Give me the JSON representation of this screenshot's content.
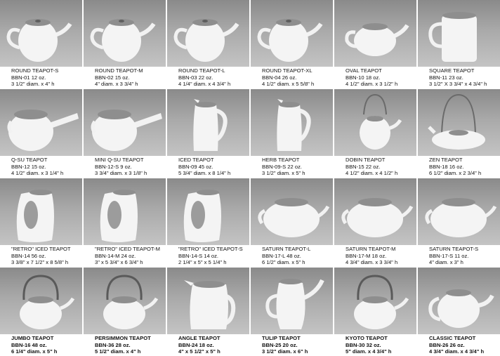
{
  "catalog": {
    "rows": [
      [
        {
          "name": "ROUND TEAPOT-S",
          "sku": "BBN-01  12 oz.",
          "dims": "3 1/2\" diam. x 4\" h",
          "icon": "round-teapot-icon"
        },
        {
          "name": "ROUND TEAPOT-M",
          "sku": "BBN-02  15 oz.",
          "dims": "4\" diam. x 3 3/4\" h",
          "icon": "round-teapot-icon"
        },
        {
          "name": "ROUND TEAPOT-L",
          "sku": "BBN-03  22 oz.",
          "dims": "4 1/4\" diam. x 4 3/4\" h",
          "icon": "round-teapot-icon"
        },
        {
          "name": "ROUND TEAPOT-XL",
          "sku": "BBN-04  26 oz.",
          "dims": "4 1/2\" diam. x 5 5/8\" h",
          "icon": "round-teapot-icon"
        },
        {
          "name": "OVAL TEAPOT",
          "sku": "BBN-10  18 oz.",
          "dims": "4 1/2\" diam. x 3 1/2\" h",
          "icon": "oval-teapot-icon"
        },
        {
          "name": "SQUARE TEAPOT",
          "sku": "BBN-11  23 oz.",
          "dims": "3 1/2\" X 3 3/4\" x 4 3/4\" h",
          "icon": "square-teapot-icon"
        }
      ],
      [
        {
          "name": "Q-SU TEAPOT",
          "sku": "BBN-12  15 oz.",
          "dims": "4 1/2\" diam. x 3 1/4\" h",
          "icon": "side-handle-teapot-icon"
        },
        {
          "name": "MINI Q-SU TEAPOT",
          "sku": "BBN-12-S  9 oz.",
          "dims": "3 3/4\" diam. x 3 1/8\" h",
          "icon": "side-handle-teapot-icon"
        },
        {
          "name": "ICED TEAPOT",
          "sku": "BBN-09  45 oz.",
          "dims": "5 3/4\" diam. x 8 1/4\" h",
          "icon": "pitcher-icon"
        },
        {
          "name": "HERB TEAPOT",
          "sku": "BBN-09-S  22 oz.",
          "dims": "3 1/2\" diam. x 5\" h",
          "icon": "pitcher-icon"
        },
        {
          "name": "DOBIN TEAPOT",
          "sku": "BBN-15  22 oz.",
          "dims": "4 1/2\" diam. x 4 1/2\" h",
          "icon": "dobin-teapot-icon"
        },
        {
          "name": "ZEN TEAPOT",
          "sku": "BBN-18  16 oz.",
          "dims": "6 1/2\" diam. x 2 3/4\" h",
          "icon": "zen-teapot-icon"
        }
      ],
      [
        {
          "name": "\"RETRO\" ICED TEAPOT",
          "sku": "BBN-14  56 oz.",
          "dims": "3 3/8\" x 7 1/2\" x 8 5/8\" h",
          "icon": "retro-teapot-icon"
        },
        {
          "name": "\"RETRO\" ICED TEAPOT-M",
          "sku": "BBN-14-M  24 oz.",
          "dims": "3\" x 5 3/4\" x 6 3/4\" h",
          "icon": "retro-teapot-icon"
        },
        {
          "name": "\"RETRO\" ICED TEAPOT-S",
          "sku": "BBN-14-S  14 oz.",
          "dims": "2 1/4\" x 5\" x 5 1/4\" h",
          "icon": "retro-teapot-icon"
        },
        {
          "name": "SATURN TEAPOT-L",
          "sku": "BBN-17-L  48 oz.",
          "dims": "6 1/2\" diam. x 5\" h",
          "icon": "saturn-teapot-icon"
        },
        {
          "name": "SATURN TEAPOT-M",
          "sku": "BBN-17-M  18 oz.",
          "dims": "4 3/4\" diam. x 3 3/4\" h",
          "icon": "saturn-teapot-icon"
        },
        {
          "name": "SATURN TEAPOT-S",
          "sku": "BBN-17-S  11 oz.",
          "dims": "4\" diam. x 3\" h",
          "icon": "saturn-teapot-icon"
        }
      ],
      [
        {
          "name": "JUMBO TEAPOT",
          "sku": "BBN-16  48 oz.",
          "dims": "6 1/4\" diam. x 5\" h",
          "icon": "handle-top-teapot-icon"
        },
        {
          "name": "PERSIMMON TEAPOT",
          "sku": "BBN-36  28 oz.",
          "dims": "5 1/2\" diam. x 4\" h",
          "icon": "handle-top-teapot-icon"
        },
        {
          "name": "ANGLE TEAPOT",
          "sku": "BBN-24  18 oz.",
          "dims": "4\" x 5 1/2\" x 5\" h",
          "icon": "angle-teapot-icon"
        },
        {
          "name": "TULIP TEAPOT",
          "sku": "BBN-25  20 oz.",
          "dims": "3 1/2\" diam. x 6\" h",
          "icon": "tulip-teapot-icon"
        },
        {
          "name": "KYOTO TEAPOT",
          "sku": "BBN-30  32 oz.",
          "dims": "5\" diam. x 4 3/4\" h",
          "icon": "handle-top-teapot-icon"
        },
        {
          "name": "CLASSIC TEAPOT",
          "sku": "BBN-26  26 oz.",
          "dims": "4 3/4\" diam. x 4 3/4\" h",
          "icon": "classic-teapot-icon"
        }
      ]
    ]
  },
  "colors": {
    "backdrop": "#a9a9a9",
    "porcelain": "#f4f4f4",
    "steel_lid": "#8e8e8e",
    "text": "#111111"
  }
}
